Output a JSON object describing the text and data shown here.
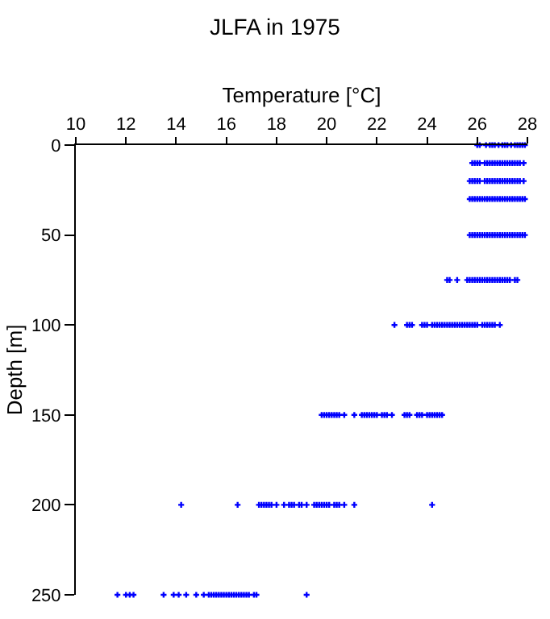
{
  "chart_data": {
    "type": "scatter",
    "title": "JLFA in 1975",
    "xlabel": "Temperature [°C]",
    "ylabel": "Depth [m]",
    "xlim": [
      10,
      28
    ],
    "xticks": [
      10,
      12,
      14,
      16,
      18,
      20,
      22,
      24,
      26,
      28
    ],
    "ylim": [
      250,
      0
    ],
    "yticks": [
      0,
      50,
      100,
      150,
      200,
      250
    ],
    "marker": "cross",
    "series": [
      {
        "color": "#0000ff",
        "x": [
          26.0,
          26.1,
          26.35,
          26.5,
          26.6,
          26.7,
          26.85,
          27.0,
          27.1,
          27.2,
          27.35,
          27.5,
          27.6,
          27.7,
          27.8,
          27.9
        ],
        "values": [
          0,
          0,
          0,
          0,
          0,
          0,
          0,
          0,
          0,
          0,
          0,
          0,
          0,
          0,
          0,
          0
        ]
      },
      {
        "color": "#0000ff",
        "x": [
          25.8,
          25.9,
          26.0,
          26.1,
          26.3,
          26.4,
          26.5,
          26.6,
          26.7,
          26.8,
          26.9,
          27.0,
          27.1,
          27.2,
          27.3,
          27.4,
          27.5,
          27.6,
          27.7,
          27.85
        ],
        "values": [
          10,
          10,
          10,
          10,
          10,
          10,
          10,
          10,
          10,
          10,
          10,
          10,
          10,
          10,
          10,
          10,
          10,
          10,
          10,
          10
        ]
      },
      {
        "color": "#0000ff",
        "x": [
          25.7,
          25.8,
          25.9,
          26.0,
          26.1,
          26.3,
          26.4,
          26.5,
          26.6,
          26.7,
          26.8,
          26.9,
          27.0,
          27.1,
          27.2,
          27.3,
          27.4,
          27.5,
          27.6,
          27.7,
          27.85
        ],
        "values": [
          20,
          20,
          20,
          20,
          20,
          20,
          20,
          20,
          20,
          20,
          20,
          20,
          20,
          20,
          20,
          20,
          20,
          20,
          20,
          20,
          20
        ]
      },
      {
        "color": "#0000ff",
        "x": [
          25.7,
          25.8,
          25.9,
          26.0,
          26.1,
          26.2,
          26.3,
          26.4,
          26.5,
          26.6,
          26.7,
          26.8,
          26.9,
          27.0,
          27.1,
          27.2,
          27.3,
          27.4,
          27.5,
          27.6,
          27.7,
          27.8,
          27.9
        ],
        "values": [
          30,
          30,
          30,
          30,
          30,
          30,
          30,
          30,
          30,
          30,
          30,
          30,
          30,
          30,
          30,
          30,
          30,
          30,
          30,
          30,
          30,
          30,
          30
        ]
      },
      {
        "color": "#0000ff",
        "x": [
          25.7,
          25.8,
          25.9,
          26.0,
          26.1,
          26.2,
          26.3,
          26.4,
          26.5,
          26.6,
          26.7,
          26.8,
          26.9,
          27.0,
          27.1,
          27.2,
          27.3,
          27.4,
          27.5,
          27.6,
          27.7,
          27.8,
          27.9
        ],
        "values": [
          50,
          50,
          50,
          50,
          50,
          50,
          50,
          50,
          50,
          50,
          50,
          50,
          50,
          50,
          50,
          50,
          50,
          50,
          50,
          50,
          50,
          50,
          50
        ]
      },
      {
        "color": "#0000ff",
        "x": [
          24.8,
          24.9,
          25.2,
          25.6,
          25.7,
          25.8,
          25.9,
          26.0,
          26.1,
          26.2,
          26.3,
          26.4,
          26.5,
          26.6,
          26.7,
          26.8,
          26.9,
          27.0,
          27.1,
          27.2,
          27.3,
          27.5,
          27.6
        ],
        "values": [
          75,
          75,
          75,
          75,
          75,
          75,
          75,
          75,
          75,
          75,
          75,
          75,
          75,
          75,
          75,
          75,
          75,
          75,
          75,
          75,
          75,
          75,
          75
        ]
      },
      {
        "color": "#0000ff",
        "x": [
          22.7,
          23.2,
          23.3,
          23.4,
          23.8,
          23.9,
          24.0,
          24.2,
          24.3,
          24.4,
          24.5,
          24.6,
          24.7,
          24.8,
          24.9,
          25.0,
          25.1,
          25.2,
          25.3,
          25.4,
          25.5,
          25.6,
          25.7,
          25.8,
          25.9,
          26.0,
          26.2,
          26.3,
          26.4,
          26.5,
          26.6,
          26.7,
          26.9
        ],
        "values": [
          100,
          100,
          100,
          100,
          100,
          100,
          100,
          100,
          100,
          100,
          100,
          100,
          100,
          100,
          100,
          100,
          100,
          100,
          100,
          100,
          100,
          100,
          100,
          100,
          100,
          100,
          100,
          100,
          100,
          100,
          100,
          100,
          100
        ]
      },
      {
        "color": "#0000ff",
        "x": [
          19.8,
          19.9,
          20.0,
          20.1,
          20.2,
          20.3,
          20.4,
          20.5,
          20.7,
          21.1,
          21.4,
          21.5,
          21.6,
          21.7,
          21.8,
          21.9,
          22.0,
          22.2,
          22.3,
          22.4,
          22.6,
          23.1,
          23.2,
          23.3,
          23.6,
          23.7,
          23.8,
          24.0,
          24.1,
          24.2,
          24.3,
          24.4,
          24.5,
          24.6
        ],
        "values": [
          150,
          150,
          150,
          150,
          150,
          150,
          150,
          150,
          150,
          150,
          150,
          150,
          150,
          150,
          150,
          150,
          150,
          150,
          150,
          150,
          150,
          150,
          150,
          150,
          150,
          150,
          150,
          150,
          150,
          150,
          150,
          150,
          150,
          150
        ]
      },
      {
        "color": "#0000ff",
        "x": [
          14.2,
          16.45,
          17.3,
          17.4,
          17.5,
          17.6,
          17.7,
          17.8,
          18.0,
          18.3,
          18.5,
          18.6,
          18.7,
          18.9,
          19.0,
          19.2,
          19.5,
          19.6,
          19.7,
          19.8,
          19.9,
          20.0,
          20.1,
          20.3,
          20.4,
          20.5,
          20.7,
          21.1,
          24.2
        ],
        "values": [
          200,
          200,
          200,
          200,
          200,
          200,
          200,
          200,
          200,
          200,
          200,
          200,
          200,
          200,
          200,
          200,
          200,
          200,
          200,
          200,
          200,
          200,
          200,
          200,
          200,
          200,
          200,
          200,
          200
        ]
      },
      {
        "color": "#0000ff",
        "x": [
          11.66,
          12.0,
          12.15,
          12.3,
          13.5,
          13.9,
          14.1,
          14.4,
          14.8,
          15.1,
          15.3,
          15.4,
          15.5,
          15.6,
          15.7,
          15.8,
          15.9,
          16.0,
          16.1,
          16.2,
          16.3,
          16.4,
          16.5,
          16.6,
          16.7,
          16.8,
          16.9,
          17.1,
          17.2,
          19.2
        ],
        "values": [
          250,
          250,
          250,
          250,
          250,
          250,
          250,
          250,
          250,
          250,
          250,
          250,
          250,
          250,
          250,
          250,
          250,
          250,
          250,
          250,
          250,
          250,
          250,
          250,
          250,
          250,
          250,
          250,
          250,
          250
        ]
      }
    ]
  }
}
